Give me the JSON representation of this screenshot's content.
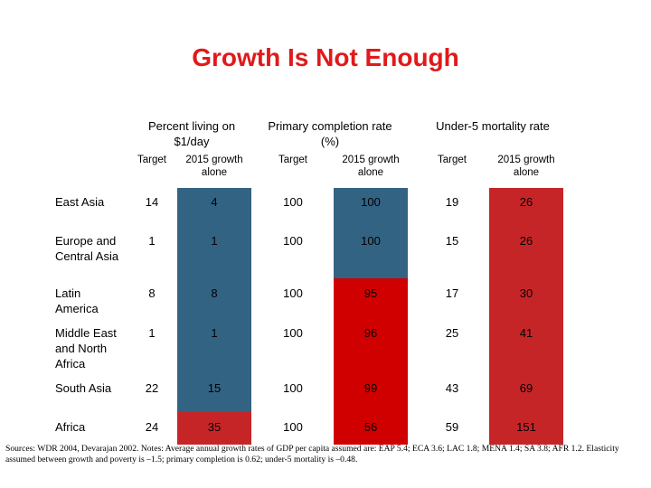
{
  "title": "Growth Is Not Enough",
  "groups": [
    {
      "label": "Percent living on\n$1/day"
    },
    {
      "label": "Primary completion rate\n(%)"
    },
    {
      "label": "Under-5 mortality rate"
    }
  ],
  "subheaders": [
    "Target",
    "2015 growth\nalone",
    "Target",
    "2015 growth\nalone",
    "Target",
    "2015 growth\nalone"
  ],
  "rows": [
    {
      "region": "East Asia",
      "values": [
        "14",
        "4",
        "100",
        "100",
        "19",
        "26"
      ]
    },
    {
      "region": "Europe and Central Asia",
      "values": [
        "1",
        "1",
        "100",
        "100",
        "15",
        "26"
      ]
    },
    {
      "region": "Latin America",
      "values": [
        "8",
        "8",
        "100",
        "95",
        "17",
        "30"
      ]
    },
    {
      "region": "Middle East and North Africa",
      "values": [
        "1",
        "1",
        "100",
        "96",
        "25",
        "41"
      ]
    },
    {
      "region": "South Asia",
      "values": [
        "22",
        "15",
        "100",
        "99",
        "43",
        "69"
      ]
    },
    {
      "region": "Africa",
      "values": [
        "24",
        "35",
        "100",
        "56",
        "59",
        "151"
      ]
    }
  ],
  "colors": {
    "title": "#e01a1a",
    "on_track": "#336383",
    "off_track": "#c62528",
    "off_track_bright": "#d10000"
  },
  "footnote": "Sources: WDR 2004, Devarajan 2002. Notes: Average annual growth rates of GDP per capita assumed are: EAP 5.4; ECA 3.6; LAC 1.8; MENA 1.4; SA 3.8; AFR 1.2. Elasticity assumed between growth and poverty is –1.5; primary completion is 0.62; under-5 mortality is –0.48."
}
